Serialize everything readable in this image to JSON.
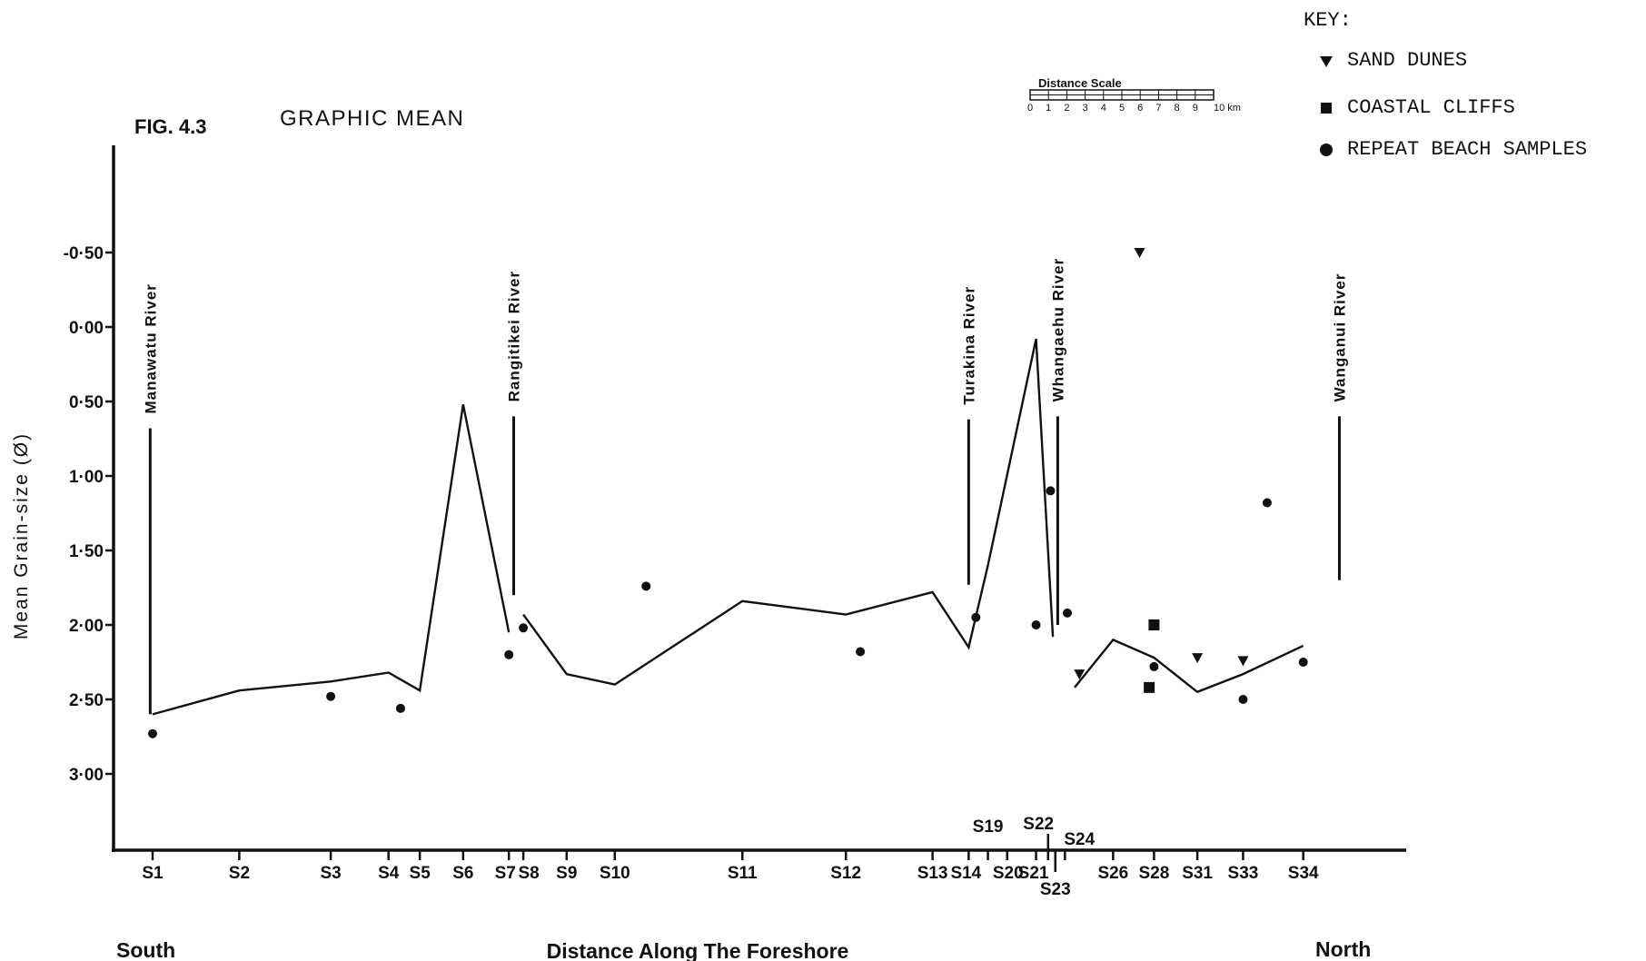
{
  "chart_data": {
    "type": "line",
    "fig_label": "FIG. 4.3",
    "title": "GRAPHIC MEAN",
    "ylabel": "Mean Grain-size (Ø)",
    "xlabel": "Distance Along The Foreshore",
    "x_end_labels": {
      "left": "South",
      "right": "North"
    },
    "y_axis": {
      "inverted": true,
      "range": [
        -0.5,
        3.0
      ],
      "ticks": [
        {
          "value": -0.5,
          "label": "-0·50"
        },
        {
          "value": 0.0,
          "label": "0·00"
        },
        {
          "value": 0.5,
          "label": "0·50"
        },
        {
          "value": 1.0,
          "label": "1·00"
        },
        {
          "value": 1.5,
          "label": "1·50"
        },
        {
          "value": 2.0,
          "label": "2·00"
        },
        {
          "value": 2.5,
          "label": "2·50"
        },
        {
          "value": 3.0,
          "label": "3·00"
        }
      ]
    },
    "x_unit": "km",
    "stations": [
      {
        "label": "S1",
        "x": 0.0
      },
      {
        "label": "S2",
        "x": 3.6
      },
      {
        "label": "S3",
        "x": 7.4
      },
      {
        "label": "S4",
        "x": 9.8
      },
      {
        "label": "S5",
        "x": 11.1
      },
      {
        "label": "S6",
        "x": 12.9
      },
      {
        "label": "S7",
        "x": 14.8
      },
      {
        "label": "S8",
        "x": 15.4
      },
      {
        "label": "S9",
        "x": 17.2
      },
      {
        "label": "S10",
        "x": 19.2
      },
      {
        "label": "S11",
        "x": 24.5
      },
      {
        "label": "S12",
        "x": 28.8
      },
      {
        "label": "S13",
        "x": 32.4
      },
      {
        "label": "S14",
        "x": 33.9
      },
      {
        "label": "S19",
        "x": 34.7
      },
      {
        "label": "S20",
        "x": 35.5
      },
      {
        "label": "S21",
        "x": 36.7
      },
      {
        "label": "S22",
        "x": 37.2
      },
      {
        "label": "S23",
        "x": 37.5
      },
      {
        "label": "S24",
        "x": 37.9
      },
      {
        "label": "S26",
        "x": 39.9
      },
      {
        "label": "S28",
        "x": 41.6
      },
      {
        "label": "S31",
        "x": 43.4
      },
      {
        "label": "S33",
        "x": 45.3
      },
      {
        "label": "S34",
        "x": 47.8
      }
    ],
    "series": [
      {
        "name": "",
        "segments": [
          [
            [
              0.0,
              2.6
            ],
            [
              3.6,
              2.44
            ],
            [
              7.4,
              2.38
            ],
            [
              9.8,
              2.32
            ],
            [
              11.1,
              2.44
            ],
            [
              12.9,
              0.52
            ],
            [
              14.8,
              2.05
            ]
          ],
          [
            [
              15.4,
              1.93
            ],
            [
              17.2,
              2.33
            ],
            [
              19.2,
              2.4
            ],
            [
              24.5,
              1.84
            ],
            [
              28.8,
              1.93
            ],
            [
              32.4,
              1.78
            ],
            [
              33.9,
              2.15
            ],
            [
              34.7,
              1.6
            ],
            [
              36.7,
              0.08
            ],
            [
              37.4,
              2.08
            ]
          ],
          [
            [
              38.3,
              2.42
            ],
            [
              39.9,
              2.1
            ],
            [
              41.6,
              2.22
            ],
            [
              43.4,
              2.45
            ],
            [
              45.3,
              2.33
            ],
            [
              47.8,
              2.14
            ]
          ]
        ]
      }
    ],
    "repeat_beach_samples": [
      [
        0.0,
        2.73
      ],
      [
        7.4,
        2.48
      ],
      [
        10.3,
        2.56
      ],
      [
        14.8,
        2.2
      ],
      [
        15.4,
        2.02
      ],
      [
        20.5,
        1.74
      ],
      [
        29.4,
        2.18
      ],
      [
        34.2,
        1.95
      ],
      [
        36.7,
        2.0
      ],
      [
        37.3,
        1.1
      ],
      [
        38.0,
        1.92
      ],
      [
        41.6,
        2.28
      ],
      [
        45.3,
        2.5
      ],
      [
        46.3,
        1.18
      ],
      [
        47.8,
        2.25
      ]
    ],
    "sand_dunes": [
      [
        38.5,
        2.33
      ],
      [
        41.0,
        -0.5
      ],
      [
        43.4,
        2.22
      ],
      [
        45.3,
        2.24
      ]
    ],
    "coastal_cliffs": [
      [
        41.6,
        2.0
      ],
      [
        41.4,
        2.42
      ]
    ],
    "rivers": [
      {
        "name": "Manawatu River",
        "x": -0.1,
        "top": 0.68,
        "bottom": 2.6
      },
      {
        "name": "Rangitikei River",
        "x": 15.0,
        "top": 0.6,
        "bottom": 1.8
      },
      {
        "name": "Turakina River",
        "x": 33.9,
        "top": 0.62,
        "bottom": 1.73
      },
      {
        "name": "Whangaehu River",
        "x": 37.6,
        "top": 0.6,
        "bottom": 2.0
      },
      {
        "name": "Wanganui River",
        "x": 49.3,
        "top": 0.6,
        "bottom": 1.7
      }
    ],
    "distance_scale": {
      "title": "Distance Scale",
      "labels": [
        "0",
        "1",
        "2",
        "3",
        "4",
        "5",
        "6",
        "7",
        "8",
        "9",
        "10 km"
      ]
    },
    "legend": {
      "title": "KEY:",
      "position": "top-right",
      "entries": [
        {
          "marker": "triangle-down",
          "label": "SAND DUNES"
        },
        {
          "marker": "square",
          "label": "COASTAL CLIFFS"
        },
        {
          "marker": "circle",
          "label": "REPEAT BEACH SAMPLES"
        }
      ]
    }
  }
}
